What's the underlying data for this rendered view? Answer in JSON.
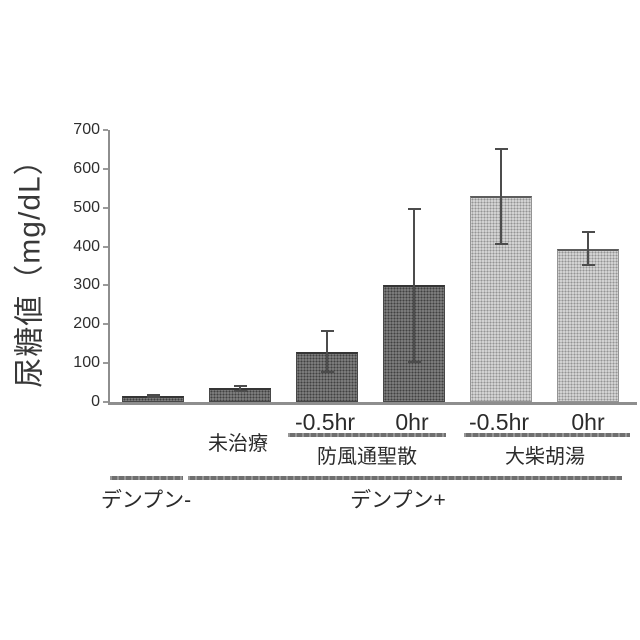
{
  "chart_data": {
    "type": "bar",
    "title": "",
    "ylabel": "尿糖値（mg/dL）",
    "xlabel": "",
    "ylim": [
      0,
      700
    ],
    "yticks": [
      0,
      100,
      200,
      300,
      400,
      500,
      600,
      700
    ],
    "grid": false,
    "legend": "none",
    "bars": [
      {
        "label": "",
        "value": 15,
        "error": 5,
        "shade": "dark",
        "group": "デンプン-",
        "subgroup": ""
      },
      {
        "label": "未治療",
        "value": 35,
        "error": 10,
        "shade": "dark",
        "group": "デンプン+",
        "subgroup": ""
      },
      {
        "label": "-0.5hr",
        "value": 130,
        "error": 55,
        "shade": "dark",
        "group": "デンプン+",
        "subgroup": "防風通聖散"
      },
      {
        "label": "0hr",
        "value": 300,
        "error": 200,
        "shade": "dark",
        "group": "デンプン+",
        "subgroup": "防風通聖散"
      },
      {
        "label": "-0.5hr",
        "value": 530,
        "error": 125,
        "shade": "light",
        "group": "デンプン+",
        "subgroup": "大柴胡湯"
      },
      {
        "label": "0hr",
        "value": 395,
        "error": 45,
        "shade": "light",
        "group": "デンプン+",
        "subgroup": "大柴胡湯"
      }
    ],
    "subgroups": [
      {
        "label": "防風通聖散"
      },
      {
        "label": "大柴胡湯"
      }
    ],
    "bottom_groups": [
      {
        "label": "デンプン-"
      },
      {
        "label": "デンプン+"
      }
    ],
    "colors": {
      "dark_bar": "#7e7e7e",
      "light_bar": "#d6d6d6",
      "axis": "#8e8e8e",
      "error_bar": "#4c4c4c",
      "bracket_line": "#6f6f6f",
      "text": "#2b2b2b",
      "background": "#ffffff"
    }
  }
}
